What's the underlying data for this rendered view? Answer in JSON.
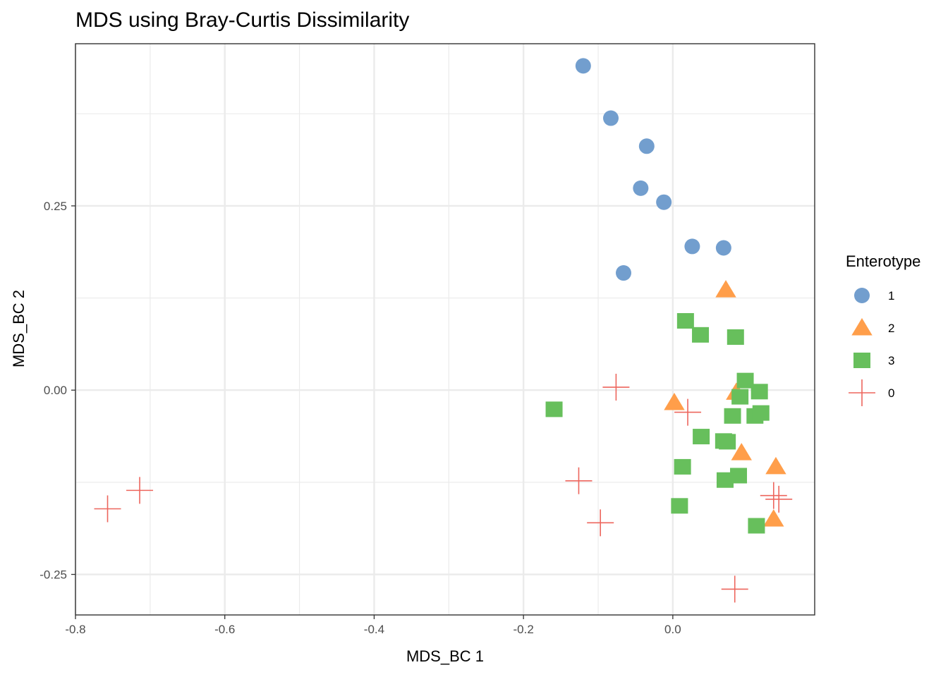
{
  "chart_data": {
    "type": "scatter",
    "title": "MDS using Bray-Curtis Dissimilarity",
    "xlabel": "MDS_BC 1",
    "ylabel": "MDS_BC 2",
    "xlim": [
      -0.8,
      0.19
    ],
    "ylim": [
      -0.305,
      0.47
    ],
    "x_ticks": [
      -0.8,
      -0.6,
      -0.4,
      -0.2,
      0.0
    ],
    "x_tick_labels": [
      "-0.8",
      "-0.6",
      "-0.4",
      "-0.2",
      "0.0"
    ],
    "y_ticks": [
      -0.25,
      0.0,
      0.25
    ],
    "y_tick_labels": [
      "-0.25",
      "0.00",
      "0.25"
    ],
    "grid": true,
    "legend": {
      "title": "Enterotype",
      "position": "right"
    },
    "series": [
      {
        "name": "1",
        "shape": "circle",
        "color": "#729ECE",
        "points": [
          {
            "x": -0.12,
            "y": 0.44
          },
          {
            "x": -0.083,
            "y": 0.369
          },
          {
            "x": -0.035,
            "y": 0.331
          },
          {
            "x": -0.043,
            "y": 0.274
          },
          {
            "x": -0.012,
            "y": 0.255
          },
          {
            "x": 0.026,
            "y": 0.195
          },
          {
            "x": 0.068,
            "y": 0.193
          },
          {
            "x": -0.066,
            "y": 0.159
          }
        ]
      },
      {
        "name": "2",
        "shape": "triangle",
        "color": "#FF9E4A",
        "points": [
          {
            "x": 0.071,
            "y": 0.136
          },
          {
            "x": 0.002,
            "y": -0.017
          },
          {
            "x": 0.085,
            "y": -0.003
          },
          {
            "x": 0.092,
            "y": -0.085
          },
          {
            "x": 0.138,
            "y": -0.104
          },
          {
            "x": 0.135,
            "y": -0.175
          }
        ]
      },
      {
        "name": "3",
        "shape": "square",
        "color": "#67BF5C",
        "points": [
          {
            "x": 0.017,
            "y": 0.094
          },
          {
            "x": 0.037,
            "y": 0.075
          },
          {
            "x": 0.084,
            "y": 0.072
          },
          {
            "x": 0.097,
            "y": 0.013
          },
          {
            "x": 0.116,
            "y": -0.002
          },
          {
            "x": 0.09,
            "y": -0.009
          },
          {
            "x": -0.159,
            "y": -0.026
          },
          {
            "x": 0.08,
            "y": -0.035
          },
          {
            "x": 0.11,
            "y": -0.035
          },
          {
            "x": 0.118,
            "y": -0.031
          },
          {
            "x": 0.038,
            "y": -0.063
          },
          {
            "x": 0.068,
            "y": -0.069
          },
          {
            "x": 0.073,
            "y": -0.07
          },
          {
            "x": 0.013,
            "y": -0.104
          },
          {
            "x": 0.088,
            "y": -0.116
          },
          {
            "x": 0.07,
            "y": -0.122
          },
          {
            "x": 0.009,
            "y": -0.157
          },
          {
            "x": 0.112,
            "y": -0.184
          }
        ]
      },
      {
        "name": "0",
        "shape": "plus",
        "color": "#ED665D",
        "points": [
          {
            "x": -0.757,
            "y": -0.161
          },
          {
            "x": -0.714,
            "y": -0.136
          },
          {
            "x": -0.126,
            "y": -0.123
          },
          {
            "x": -0.097,
            "y": -0.18
          },
          {
            "x": -0.076,
            "y": 0.004
          },
          {
            "x": 0.02,
            "y": -0.03
          },
          {
            "x": 0.083,
            "y": -0.27
          },
          {
            "x": 0.135,
            "y": -0.143
          },
          {
            "x": 0.142,
            "y": -0.148
          }
        ]
      }
    ]
  }
}
